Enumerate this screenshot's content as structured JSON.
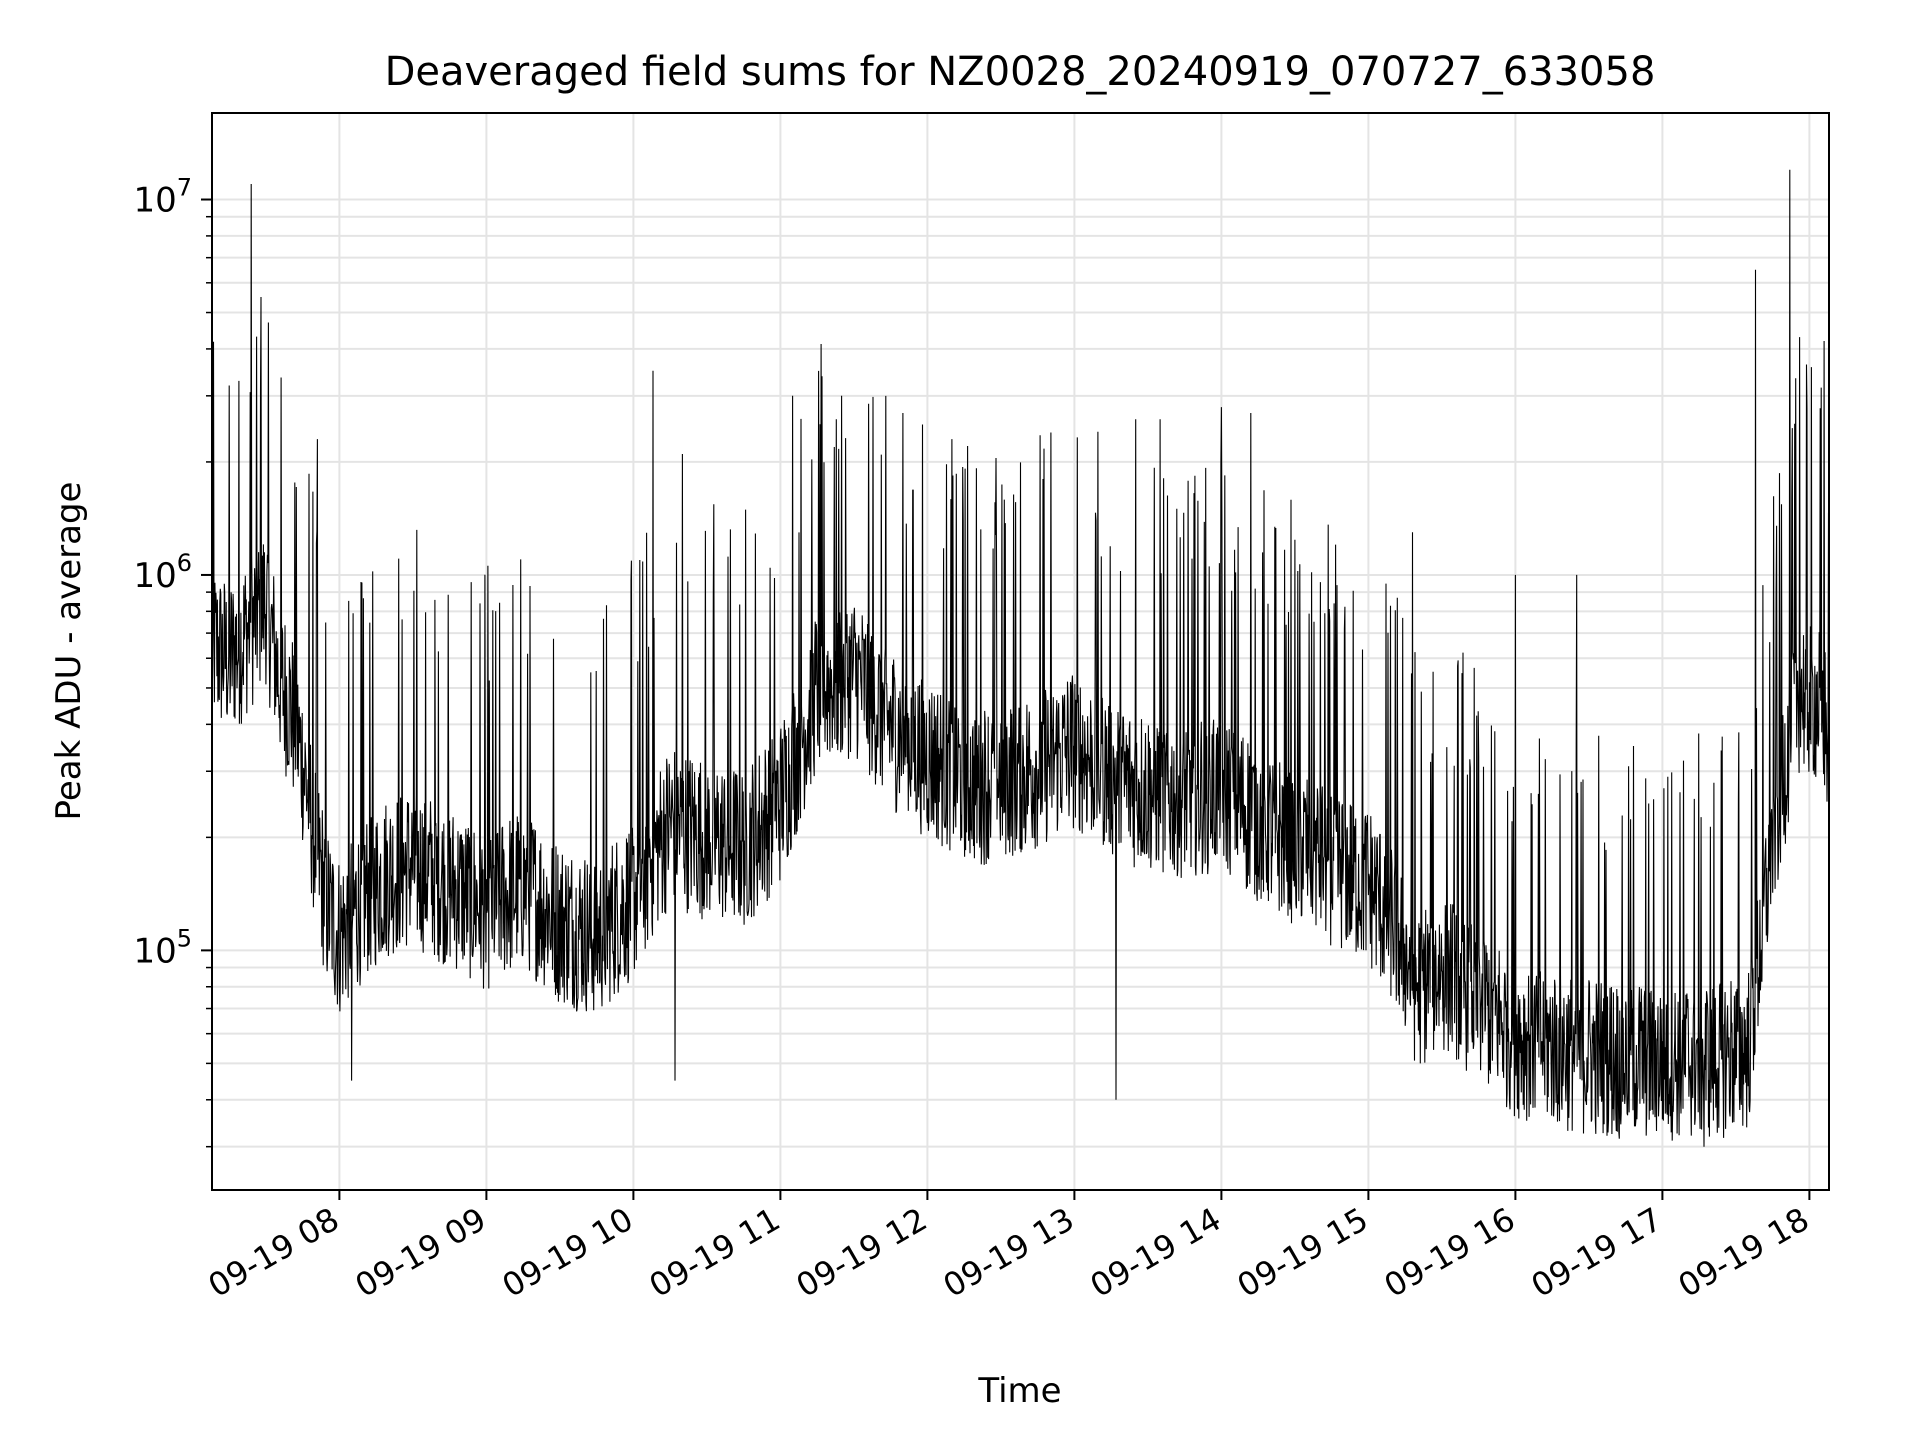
{
  "chart_data": {
    "type": "line",
    "title": "Deaveraged field sums for NZ0028_20240919_070727_633058",
    "xlabel": "Time",
    "ylabel": "Peak ADU - average",
    "y_scale": "log",
    "ylim": [
      23000,
      17000000
    ],
    "xlim": [
      "2024-09-19 07:08",
      "2024-09-19 18:08"
    ],
    "grid": true,
    "line_color": "#000000",
    "x_ticks": [
      {
        "t": "2024-09-19 08:00",
        "label": "09-19 08"
      },
      {
        "t": "2024-09-19 09:00",
        "label": "09-19 09"
      },
      {
        "t": "2024-09-19 10:00",
        "label": "09-19 10"
      },
      {
        "t": "2024-09-19 11:00",
        "label": "09-19 11"
      },
      {
        "t": "2024-09-19 12:00",
        "label": "09-19 12"
      },
      {
        "t": "2024-09-19 13:00",
        "label": "09-19 13"
      },
      {
        "t": "2024-09-19 14:00",
        "label": "09-19 14"
      },
      {
        "t": "2024-09-19 15:00",
        "label": "09-19 15"
      },
      {
        "t": "2024-09-19 16:00",
        "label": "09-19 16"
      },
      {
        "t": "2024-09-19 17:00",
        "label": "09-19 17"
      },
      {
        "t": "2024-09-19 18:00",
        "label": "09-19 18"
      }
    ],
    "y_ticks": [
      {
        "value": 100000,
        "base": "10",
        "exp": "5"
      },
      {
        "value": 1000000,
        "base": "10",
        "exp": "6"
      },
      {
        "value": 10000000,
        "base": "10",
        "exp": "7"
      }
    ],
    "series": [
      {
        "x": [
          "2024-09-19 07:08",
          "2024-09-19 07:15",
          "2024-09-19 07:22",
          "2024-09-19 07:30",
          "2024-09-19 07:35",
          "2024-09-19 07:40",
          "2024-09-19 07:45",
          "2024-09-19 07:50",
          "2024-09-19 07:55",
          "2024-09-19 08:00",
          "2024-09-19 08:10",
          "2024-09-19 08:20",
          "2024-09-19 08:30",
          "2024-09-19 08:45",
          "2024-09-19 09:00",
          "2024-09-19 09:15",
          "2024-09-19 09:30",
          "2024-09-19 09:45",
          "2024-09-19 10:00",
          "2024-09-19 10:15",
          "2024-09-19 10:30",
          "2024-09-19 10:45",
          "2024-09-19 11:00",
          "2024-09-19 11:15",
          "2024-09-19 11:30",
          "2024-09-19 11:45",
          "2024-09-19 12:00",
          "2024-09-19 12:20",
          "2024-09-19 12:40",
          "2024-09-19 13:00",
          "2024-09-19 13:20",
          "2024-09-19 13:40",
          "2024-09-19 14:00",
          "2024-09-19 14:20",
          "2024-09-19 14:40",
          "2024-09-19 15:00",
          "2024-09-19 15:10",
          "2024-09-19 15:20",
          "2024-09-19 15:30",
          "2024-09-19 15:45",
          "2024-09-19 16:00",
          "2024-09-19 16:20",
          "2024-09-19 16:40",
          "2024-09-19 17:00",
          "2024-09-19 17:20",
          "2024-09-19 17:35",
          "2024-09-19 17:45",
          "2024-09-19 17:55",
          "2024-09-19 18:05",
          "2024-09-19 18:08"
        ],
        "y": [
          650000,
          600000,
          700000,
          850000,
          550000,
          450000,
          320000,
          200000,
          130000,
          110000,
          140000,
          160000,
          170000,
          150000,
          130000,
          150000,
          120000,
          110000,
          140000,
          220000,
          200000,
          190000,
          250000,
          500000,
          550000,
          400000,
          330000,
          280000,
          300000,
          350000,
          280000,
          260000,
          270000,
          210000,
          180000,
          150000,
          120000,
          80000,
          90000,
          75000,
          60000,
          55000,
          52000,
          52000,
          52000,
          55000,
          200000,
          500000,
          450000,
          350000
        ],
        "spikes": [
          {
            "t": "2024-09-19 07:24",
            "y": 11000000
          },
          {
            "t": "2024-09-19 07:28",
            "y": 5500000
          },
          {
            "t": "2024-09-19 07:51",
            "y": 2300000
          },
          {
            "t": "2024-09-19 10:08",
            "y": 3500000
          },
          {
            "t": "2024-09-19 10:20",
            "y": 2100000
          },
          {
            "t": "2024-09-19 11:05",
            "y": 3000000
          },
          {
            "t": "2024-09-19 11:25",
            "y": 3000000
          },
          {
            "t": "2024-09-19 11:50",
            "y": 2700000
          },
          {
            "t": "2024-09-19 12:10",
            "y": 2300000
          },
          {
            "t": "2024-09-19 13:25",
            "y": 2600000
          },
          {
            "t": "2024-09-19 13:35",
            "y": 2600000
          },
          {
            "t": "2024-09-19 14:00",
            "y": 2800000
          },
          {
            "t": "2024-09-19 14:12",
            "y": 2700000
          },
          {
            "t": "2024-09-19 15:18",
            "y": 1300000
          },
          {
            "t": "2024-09-19 16:00",
            "y": 1000000
          },
          {
            "t": "2024-09-19 16:25",
            "y": 1000000
          },
          {
            "t": "2024-09-19 17:38",
            "y": 6500000
          },
          {
            "t": "2024-09-19 17:52",
            "y": 12000000
          },
          {
            "t": "2024-09-19 17:56",
            "y": 4300000
          },
          {
            "t": "2024-09-19 18:06",
            "y": 4200000
          }
        ],
        "dips": [
          {
            "t": "2024-09-19 08:05",
            "y": 45000
          },
          {
            "t": "2024-09-19 10:17",
            "y": 45000
          },
          {
            "t": "2024-09-19 13:17",
            "y": 40000
          },
          {
            "t": "2024-09-19 17:17",
            "y": 30000
          }
        ]
      }
    ]
  }
}
